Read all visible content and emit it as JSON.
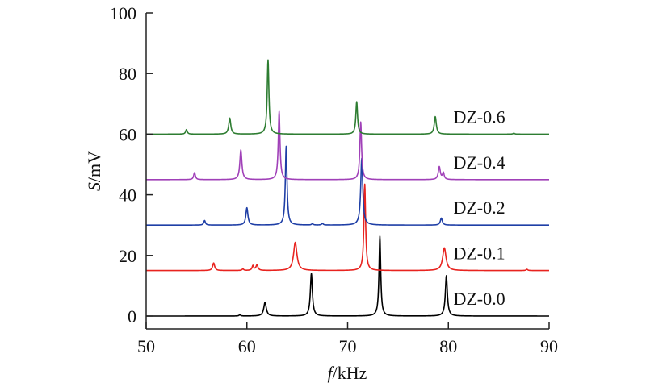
{
  "chart_data": {
    "type": "line",
    "title": "",
    "xlabel": {
      "italic": "f",
      "rest": "/kHz"
    },
    "ylabel": {
      "italic": "S",
      "rest": "/mV"
    },
    "xlim": [
      50,
      90
    ],
    "ylim": [
      0,
      100
    ],
    "x_ticks": [
      50,
      60,
      70,
      80,
      90
    ],
    "y_ticks": [
      0,
      20,
      40,
      60,
      80,
      100
    ],
    "grid": false,
    "series": [
      {
        "name": "DZ-0.0",
        "color": "#000000",
        "baseline": 0,
        "label_x": 80.5,
        "peaks": [
          {
            "x": 61.8,
            "y": 4.5,
            "w": 0.15
          },
          {
            "x": 66.4,
            "y": 14.0,
            "w": 0.12
          },
          {
            "x": 73.2,
            "y": 26.3,
            "w": 0.1
          },
          {
            "x": 79.8,
            "y": 13.3,
            "w": 0.12
          },
          {
            "x": 59.3,
            "y": 0.4,
            "w": 0.1
          }
        ]
      },
      {
        "name": "DZ-0.1",
        "color": "#e8231f",
        "baseline": 15,
        "label_x": 80.5,
        "peaks": [
          {
            "x": 56.7,
            "y": 17.5,
            "w": 0.12
          },
          {
            "x": 60.6,
            "y": 16.6,
            "w": 0.1
          },
          {
            "x": 61.0,
            "y": 16.8,
            "w": 0.12
          },
          {
            "x": 64.8,
            "y": 24.3,
            "w": 0.2
          },
          {
            "x": 71.7,
            "y": 43.5,
            "w": 0.1
          },
          {
            "x": 79.6,
            "y": 22.5,
            "w": 0.2
          },
          {
            "x": 59.6,
            "y": 15.5,
            "w": 0.1
          },
          {
            "x": 87.8,
            "y": 15.4,
            "w": 0.1
          }
        ]
      },
      {
        "name": "DZ-0.2",
        "color": "#1f3fa6",
        "baseline": 30,
        "label_x": 80.5,
        "peaks": [
          {
            "x": 55.8,
            "y": 31.5,
            "w": 0.1
          },
          {
            "x": 60.0,
            "y": 35.7,
            "w": 0.12
          },
          {
            "x": 63.9,
            "y": 56.0,
            "w": 0.1
          },
          {
            "x": 71.4,
            "y": 52.0,
            "w": 0.12
          },
          {
            "x": 79.3,
            "y": 32.3,
            "w": 0.12
          },
          {
            "x": 66.5,
            "y": 30.4,
            "w": 0.1
          },
          {
            "x": 67.5,
            "y": 30.5,
            "w": 0.1
          }
        ]
      },
      {
        "name": "DZ-0.4",
        "color": "#a040b8",
        "baseline": 45,
        "label_x": 80.5,
        "peaks": [
          {
            "x": 54.8,
            "y": 47.3,
            "w": 0.1
          },
          {
            "x": 59.4,
            "y": 54.8,
            "w": 0.12
          },
          {
            "x": 63.2,
            "y": 67.5,
            "w": 0.1
          },
          {
            "x": 71.3,
            "y": 64.0,
            "w": 0.1
          },
          {
            "x": 79.1,
            "y": 49.2,
            "w": 0.12
          },
          {
            "x": 79.5,
            "y": 47.2,
            "w": 0.1
          }
        ]
      },
      {
        "name": "DZ-0.6",
        "color": "#2e7d32",
        "baseline": 60,
        "label_x": 80.5,
        "peaks": [
          {
            "x": 54.0,
            "y": 61.5,
            "w": 0.1
          },
          {
            "x": 58.3,
            "y": 65.3,
            "w": 0.12
          },
          {
            "x": 62.1,
            "y": 84.5,
            "w": 0.1
          },
          {
            "x": 70.9,
            "y": 70.7,
            "w": 0.1
          },
          {
            "x": 78.7,
            "y": 65.8,
            "w": 0.12
          },
          {
            "x": 86.5,
            "y": 60.3,
            "w": 0.1
          }
        ]
      }
    ]
  }
}
